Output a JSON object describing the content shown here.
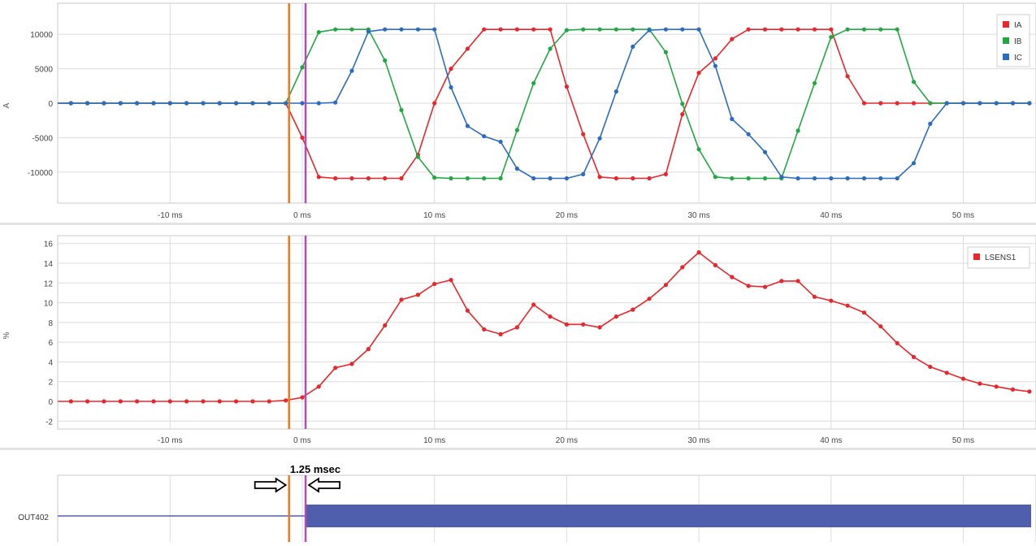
{
  "chart_data": [
    {
      "type": "line",
      "ylabel": "A",
      "xlim": [
        -18.5,
        55.5
      ],
      "ylim": [
        -14500,
        14500
      ],
      "yticks": [
        10000,
        5000,
        0,
        -5000,
        -10000
      ],
      "ytick_labels": [
        "10000",
        "5000",
        "0",
        "-5000",
        "-10000"
      ],
      "xticks": [
        -10,
        0,
        10,
        20,
        30,
        40,
        50
      ],
      "xtick_labels": [
        "-10 ms",
        "0 ms",
        "10 ms",
        "20 ms",
        "30 ms",
        "40 ms",
        "50 ms"
      ],
      "legend": "top-right",
      "grid": true,
      "series": [
        {
          "name": "IA",
          "color": "#e8262b",
          "x": [
            -18.75,
            -17.5,
            -16.25,
            -15,
            -13.75,
            -12.5,
            -11.25,
            -10,
            -8.75,
            -7.5,
            -6.25,
            -5,
            -3.75,
            -2.5,
            -1.25,
            0,
            1.25,
            2.5,
            3.75,
            5,
            6.25,
            7.5,
            8.75,
            10,
            11.25,
            12.5,
            13.75,
            15,
            16.25,
            17.5,
            18.75,
            20,
            21.25,
            22.5,
            23.75,
            25,
            26.25,
            27.5,
            28.75,
            30,
            31.25,
            32.5,
            33.75,
            35,
            36.25,
            37.5,
            38.75,
            40,
            41.25,
            42.5,
            43.75,
            45,
            46.25,
            47.5,
            48.75,
            50,
            51.25,
            52.5,
            53.75,
            55
          ],
          "y": [
            0,
            0,
            0,
            0,
            0,
            0,
            0,
            0,
            0,
            0,
            0,
            0,
            0,
            0,
            0,
            -5000,
            -10700,
            -10900,
            -10900,
            -10900,
            -10900,
            -10900,
            -7500,
            0,
            5000,
            7900,
            10700,
            10700,
            10700,
            10700,
            10700,
            2400,
            -4500,
            -10700,
            -10900,
            -10900,
            -10900,
            -10300,
            -1600,
            4400,
            6500,
            9300,
            10700,
            10700,
            10700,
            10700,
            10700,
            10700,
            3900,
            0,
            0,
            0,
            0,
            0,
            0,
            0,
            0,
            0,
            0,
            0
          ]
        },
        {
          "name": "IB",
          "color": "#23a744",
          "x": [
            -18.75,
            -17.5,
            -16.25,
            -15,
            -13.75,
            -12.5,
            -11.25,
            -10,
            -8.75,
            -7.5,
            -6.25,
            -5,
            -3.75,
            -2.5,
            -1.25,
            0,
            1.25,
            2.5,
            3.75,
            5,
            6.25,
            7.5,
            8.75,
            10,
            11.25,
            12.5,
            13.75,
            15,
            16.25,
            17.5,
            18.75,
            20,
            21.25,
            22.5,
            23.75,
            25,
            26.25,
            27.5,
            28.75,
            30,
            31.25,
            32.5,
            33.75,
            35,
            36.25,
            37.5,
            38.75,
            40,
            41.25,
            42.5,
            43.75,
            45,
            46.25,
            47.5,
            48.75,
            50,
            51.25,
            52.5,
            53.75,
            55
          ],
          "y": [
            0,
            0,
            0,
            0,
            0,
            0,
            0,
            0,
            0,
            0,
            0,
            0,
            0,
            0,
            0,
            5200,
            10300,
            10700,
            10700,
            10700,
            6200,
            -1000,
            -7800,
            -10800,
            -10900,
            -10900,
            -10900,
            -10900,
            -3900,
            2900,
            7900,
            10600,
            10700,
            10700,
            10700,
            10700,
            10700,
            7400,
            -100,
            -6700,
            -10700,
            -10900,
            -10900,
            -10900,
            -10900,
            -4000,
            2900,
            9600,
            10700,
            10700,
            10700,
            10700,
            3100,
            0,
            0,
            0,
            0,
            0,
            0,
            0
          ]
        },
        {
          "name": "IC",
          "color": "#2b6cc0",
          "x": [
            -18.75,
            -17.5,
            -16.25,
            -15,
            -13.75,
            -12.5,
            -11.25,
            -10,
            -8.75,
            -7.5,
            -6.25,
            -5,
            -3.75,
            -2.5,
            -1.25,
            0,
            1.25,
            2.5,
            3.75,
            5,
            6.25,
            7.5,
            8.75,
            10,
            11.25,
            12.5,
            13.75,
            15,
            16.25,
            17.5,
            18.75,
            20,
            21.25,
            22.5,
            23.75,
            25,
            26.25,
            27.5,
            28.75,
            30,
            31.25,
            32.5,
            33.75,
            35,
            36.25,
            37.5,
            38.75,
            40,
            41.25,
            42.5,
            43.75,
            45,
            46.25,
            47.5,
            48.75,
            50,
            51.25,
            52.5,
            53.75,
            55
          ],
          "y": [
            0,
            0,
            0,
            0,
            0,
            0,
            0,
            0,
            0,
            0,
            0,
            0,
            0,
            0,
            0,
            0,
            0,
            100,
            4700,
            10400,
            10700,
            10700,
            10700,
            10700,
            2300,
            -3300,
            -4800,
            -5600,
            -9500,
            -10900,
            -10900,
            -10900,
            -10300,
            -5100,
            1700,
            8200,
            10600,
            10700,
            10700,
            10700,
            5400,
            -2300,
            -4500,
            -7100,
            -10700,
            -10900,
            -10900,
            -10900,
            -10900,
            -10900,
            -10900,
            -10900,
            -8700,
            -3000,
            0,
            0,
            0,
            0,
            0,
            0
          ]
        }
      ]
    },
    {
      "type": "line",
      "ylabel": "%",
      "xlim": [
        -18.5,
        55.5
      ],
      "ylim": [
        -2.8,
        16.8
      ],
      "yticks": [
        16,
        14,
        12,
        10,
        8,
        6,
        4,
        2,
        0,
        -2
      ],
      "ytick_labels": [
        "16",
        "14",
        "12",
        "10",
        "8",
        "6",
        "4",
        "2",
        "0",
        "-2"
      ],
      "xticks": [
        -10,
        0,
        10,
        20,
        30,
        40,
        50
      ],
      "xtick_labels": [
        "-10 ms",
        "0 ms",
        "10 ms",
        "20 ms",
        "30 ms",
        "40 ms",
        "50 ms"
      ],
      "legend": "top-right",
      "grid": true,
      "series": [
        {
          "name": "LSENS1",
          "color": "#e8262b",
          "x": [
            -18.75,
            -17.5,
            -16.25,
            -15,
            -13.75,
            -12.5,
            -11.25,
            -10,
            -8.75,
            -7.5,
            -6.25,
            -5,
            -3.75,
            -2.5,
            -1.25,
            0,
            1.25,
            2.5,
            3.75,
            5,
            6.25,
            7.5,
            8.75,
            10,
            11.25,
            12.5,
            13.75,
            15,
            16.25,
            17.5,
            18.75,
            20,
            21.25,
            22.5,
            23.75,
            25,
            26.25,
            27.5,
            28.75,
            30,
            31.25,
            32.5,
            33.75,
            35,
            36.25,
            37.5,
            38.75,
            40,
            41.25,
            42.5,
            43.75,
            45,
            46.25,
            47.5,
            48.75,
            50,
            51.25,
            52.5,
            53.75,
            55
          ],
          "y": [
            0,
            0,
            0,
            0,
            0,
            0,
            0,
            0,
            0,
            0,
            0,
            0,
            0,
            0,
            0.1,
            0.4,
            1.5,
            3.4,
            3.8,
            5.3,
            7.7,
            10.3,
            10.8,
            11.9,
            12.3,
            9.2,
            7.3,
            6.8,
            7.5,
            9.8,
            8.6,
            7.8,
            7.8,
            7.5,
            8.6,
            9.3,
            10.4,
            11.8,
            13.6,
            15.1,
            13.8,
            12.6,
            11.7,
            11.6,
            12.2,
            12.2,
            10.6,
            10.2,
            9.7,
            9.0,
            7.6,
            5.9,
            4.5,
            3.5,
            2.9,
            2.3,
            1.8,
            1.5,
            1.2,
            1.0
          ]
        }
      ]
    },
    {
      "type": "line",
      "ylabel": "",
      "category_label": "OUT402",
      "series": [
        {
          "name": "OUT402",
          "color": "#4f5fae",
          "steps": [
            {
              "from_ms": -18.5,
              "to_ms": 0.25,
              "value": 0
            },
            {
              "from_ms": 0.25,
              "to_ms": 55.5,
              "value": 1
            }
          ]
        }
      ]
    }
  ],
  "cursors": {
    "orange_ms": -1.0,
    "magenta_ms": 0.25,
    "orange_color": "#e87b1c",
    "magenta_color": "#b44bb0"
  },
  "annotation": {
    "text": "1.25 msec"
  }
}
